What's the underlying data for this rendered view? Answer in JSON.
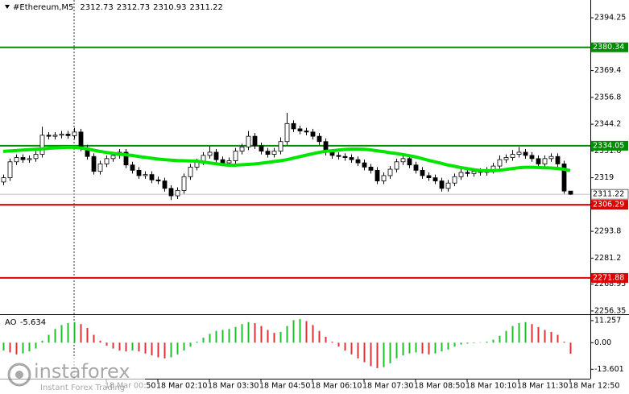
{
  "chart_data": {
    "type": "candlestick",
    "title": "#Ethereum,M5",
    "categories": [
      null,
      null,
      null,
      null,
      null,
      null,
      null,
      null,
      null,
      null,
      null,
      null,
      null,
      null,
      null,
      null,
      "18 Mar 00:50",
      null,
      null,
      null,
      null,
      null,
      null,
      null,
      "18 Mar 02:10",
      null,
      null,
      null,
      null,
      null,
      null,
      null,
      "18 Mar 03:30",
      null,
      null,
      null,
      null,
      null,
      null,
      null,
      "18 Mar 04:50",
      null,
      null,
      null,
      null,
      null,
      null,
      null,
      "18 Mar 06:10",
      null,
      null,
      null,
      null,
      null,
      null,
      null,
      "18 Mar 07:30",
      null,
      null,
      null,
      null,
      null,
      null,
      null,
      "18 Mar 08:50",
      null,
      null,
      null,
      null,
      null,
      null,
      null,
      "18 Mar 10:10",
      null,
      null,
      null,
      null,
      null,
      null,
      null,
      "18 Mar 11:30",
      null,
      null,
      null,
      null,
      null,
      null,
      null,
      "18 Mar 12:50"
    ],
    "open": [
      2317.0,
      2319.0,
      2326.5,
      2328.5,
      2327.5,
      2328.0,
      2330.0,
      2339.0,
      2338.5,
      2339.0,
      2339.5,
      2338.8,
      2340.5,
      2333.0,
      2329.0,
      2322.0,
      2325.5,
      2328.0,
      2329.5,
      2331.0,
      2325.0,
      2322.5,
      2320.0,
      2320.5,
      2318.0,
      2317.5,
      2314.0,
      2310.5,
      2313.0,
      2319.5,
      2324.0,
      2326.5,
      2329.5,
      2331.0,
      2327.5,
      2326.0,
      2327.0,
      2331.5,
      2333.5,
      2338.5,
      2334.0,
      2331.5,
      2330.0,
      2331.5,
      2336.0,
      2344.5,
      2342.0,
      2341.0,
      2340.5,
      2338.5,
      2336.0,
      2331.0,
      2329.5,
      2329.0,
      2328.5,
      2327.5,
      2326.0,
      2324.0,
      2322.5,
      2317.5,
      2320.0,
      2323.0,
      2326.5,
      2328.0,
      2325.0,
      2322.5,
      2320.0,
      2319.0,
      2317.5,
      2314.0,
      2316.5,
      2319.5,
      2321.5,
      2321.0,
      2322.0,
      2321.5,
      2322.5,
      2324.5,
      2327.5,
      2328.5,
      2330.0,
      2331.0,
      2329.5,
      2328.0,
      2325.5,
      2328.0,
      2329.0,
      2325.5,
      2312.73
    ],
    "high": [
      2320.5,
      2328.0,
      2330.0,
      2330.0,
      2329.5,
      2331.5,
      2343.0,
      2340.5,
      2340.5,
      2341.0,
      2341.0,
      2342.5,
      2342.0,
      2334.5,
      2330.5,
      2327.0,
      2329.5,
      2331.0,
      2332.5,
      2332.5,
      2326.5,
      2324.0,
      2322.0,
      2322.0,
      2319.5,
      2319.0,
      2315.5,
      2314.5,
      2321.0,
      2325.5,
      2328.0,
      2331.0,
      2334.0,
      2332.5,
      2329.0,
      2328.5,
      2333.0,
      2335.0,
      2341.0,
      2340.0,
      2335.5,
      2333.0,
      2333.0,
      2338.0,
      2349.5,
      2346.0,
      2343.5,
      2342.5,
      2342.0,
      2340.0,
      2337.5,
      2332.5,
      2331.0,
      2330.5,
      2330.0,
      2329.0,
      2327.5,
      2325.5,
      2324.0,
      2321.5,
      2324.5,
      2328.0,
      2329.5,
      2329.5,
      2326.5,
      2324.0,
      2321.5,
      2320.5,
      2319.0,
      2318.0,
      2321.0,
      2323.0,
      2323.0,
      2323.5,
      2323.5,
      2324.0,
      2326.0,
      2329.5,
      2330.0,
      2332.0,
      2333.5,
      2332.5,
      2331.0,
      2329.5,
      2329.5,
      2330.5,
      2330.5,
      2327.0,
      2312.73
    ],
    "low": [
      2315.5,
      2317.5,
      2325.0,
      2326.0,
      2326.0,
      2326.5,
      2328.5,
      2337.0,
      2337.0,
      2337.5,
      2337.3,
      2337.3,
      2331.5,
      2327.5,
      2320.5,
      2320.5,
      2324.0,
      2326.5,
      2328.0,
      2323.5,
      2321.0,
      2318.5,
      2318.5,
      2316.5,
      2316.0,
      2312.5,
      2308.5,
      2309.0,
      2311.5,
      2318.0,
      2322.5,
      2325.0,
      2328.0,
      2326.0,
      2324.5,
      2324.5,
      2325.5,
      2330.0,
      2332.0,
      2332.5,
      2330.0,
      2328.5,
      2328.5,
      2330.0,
      2334.5,
      2340.5,
      2339.5,
      2339.0,
      2337.0,
      2334.5,
      2329.5,
      2328.0,
      2327.5,
      2327.0,
      2326.0,
      2324.5,
      2322.5,
      2321.0,
      2316.0,
      2316.0,
      2318.5,
      2321.5,
      2325.0,
      2323.5,
      2321.0,
      2318.5,
      2317.5,
      2316.0,
      2312.5,
      2312.5,
      2315.0,
      2318.0,
      2319.5,
      2319.5,
      2320.0,
      2320.0,
      2321.0,
      2323.0,
      2326.0,
      2327.0,
      2328.5,
      2328.0,
      2326.5,
      2324.0,
      2324.0,
      2326.5,
      2324.0,
      2311.5,
      2310.93
    ],
    "close": [
      2319.0,
      2326.5,
      2328.5,
      2327.5,
      2328.0,
      2330.0,
      2339.0,
      2338.5,
      2339.0,
      2339.5,
      2338.8,
      2340.5,
      2333.0,
      2329.0,
      2322.0,
      2325.5,
      2328.0,
      2329.5,
      2331.0,
      2325.0,
      2322.5,
      2320.0,
      2320.5,
      2318.0,
      2317.5,
      2314.0,
      2310.5,
      2313.0,
      2319.5,
      2324.0,
      2326.5,
      2329.5,
      2331.0,
      2327.5,
      2326.0,
      2327.0,
      2331.5,
      2333.5,
      2338.5,
      2334.0,
      2331.5,
      2330.0,
      2331.5,
      2336.0,
      2344.5,
      2342.0,
      2341.0,
      2340.5,
      2338.5,
      2336.0,
      2331.0,
      2329.5,
      2329.0,
      2328.5,
      2327.5,
      2326.0,
      2324.0,
      2322.5,
      2317.5,
      2320.0,
      2323.0,
      2326.5,
      2328.0,
      2325.0,
      2322.5,
      2320.0,
      2319.0,
      2317.5,
      2314.0,
      2316.5,
      2319.5,
      2321.5,
      2321.0,
      2322.0,
      2321.5,
      2322.5,
      2324.5,
      2327.5,
      2328.5,
      2330.0,
      2331.0,
      2329.5,
      2328.0,
      2325.5,
      2328.0,
      2329.0,
      2325.5,
      2312.73,
      2311.22
    ],
    "ma": {
      "color": "#00e600",
      "values": [
        2331.4,
        2331.6,
        2331.8,
        2332.0,
        2332.2,
        2332.4,
        2332.6,
        2332.8,
        2333.0,
        2333.2,
        2333.3,
        2333.3,
        2333.0,
        2332.6,
        2332.0,
        2331.4,
        2330.9,
        2330.5,
        2330.1,
        2329.8,
        2329.5,
        2329.0,
        2328.6,
        2328.2,
        2327.8,
        2327.5,
        2327.3,
        2327.1,
        2327.0,
        2326.9,
        2326.8,
        2326.4,
        2326.0,
        2325.6,
        2325.2,
        2324.9,
        2324.9,
        2325.1,
        2325.3,
        2325.5,
        2325.8,
        2326.2,
        2326.6,
        2327.0,
        2327.5,
        2328.2,
        2328.9,
        2329.6,
        2330.3,
        2330.9,
        2331.4,
        2331.7,
        2332.0,
        2332.3,
        2332.5,
        2332.5,
        2332.4,
        2332.1,
        2331.7,
        2331.3,
        2330.8,
        2330.4,
        2329.9,
        2329.4,
        2328.8,
        2328.0,
        2327.2,
        2326.5,
        2325.8,
        2325.0,
        2324.4,
        2323.8,
        2323.3,
        2322.8,
        2322.4,
        2322.3,
        2322.3,
        2322.5,
        2322.9,
        2323.3,
        2323.7,
        2323.9,
        2323.9,
        2323.8,
        2323.7,
        2323.6,
        2323.4,
        2323.0,
        2322.4
      ]
    },
    "levels": [
      {
        "value": 2380.34,
        "color": "#008c00"
      },
      {
        "value": 2334.05,
        "color": "#008c00"
      },
      {
        "value": 2306.29,
        "color": "#e00000"
      },
      {
        "value": 2271.88,
        "color": "#e00000"
      }
    ],
    "ylim": [
      2254.8,
      2402.6
    ],
    "yticks": [
      2394.25,
      2369.4,
      2356.8,
      2344.2,
      2331.6,
      2319.0,
      2293.8,
      2281.2,
      2268.95,
      2256.35
    ],
    "indicator": {
      "name": "AO",
      "up_color": "#1fbf2f",
      "down_color": "#e0303a",
      "values": [
        -4,
        -5,
        -6,
        -5.5,
        -4.5,
        -3,
        1,
        4,
        7,
        9,
        10,
        10.5,
        9.5,
        7.5,
        4,
        1,
        -1.5,
        -3,
        -4,
        -4.5,
        -4,
        -4.5,
        -5.5,
        -6.5,
        -7.5,
        -8,
        -7.5,
        -6,
        -4,
        -2,
        0.5,
        2.5,
        4.5,
        6,
        6.5,
        7,
        8,
        9.5,
        10.5,
        10,
        8.5,
        6.5,
        5,
        5.5,
        8.5,
        11.5,
        12,
        11,
        9,
        6,
        3,
        0.5,
        -2,
        -4,
        -6,
        -8,
        -10,
        -12,
        -13,
        -12.5,
        -10.5,
        -8,
        -6.5,
        -5.5,
        -5,
        -5.5,
        -6,
        -5.5,
        -4.5,
        -3.5,
        -2,
        -1,
        -0.5,
        -0.3,
        0.2,
        0.5,
        1.5,
        3.5,
        6,
        8.5,
        10,
        10.5,
        9.5,
        8,
        6.5,
        5.5,
        4,
        0.5,
        -5.634
      ],
      "ylim": [
        -18.4,
        14.1
      ],
      "yticks": [
        11.257,
        {
          "value": 0,
          "label": "0.00"
        },
        -13.601
      ]
    },
    "watermark": {
      "brand": "instaforex",
      "slogan": "Instant Forex Trading"
    }
  }
}
